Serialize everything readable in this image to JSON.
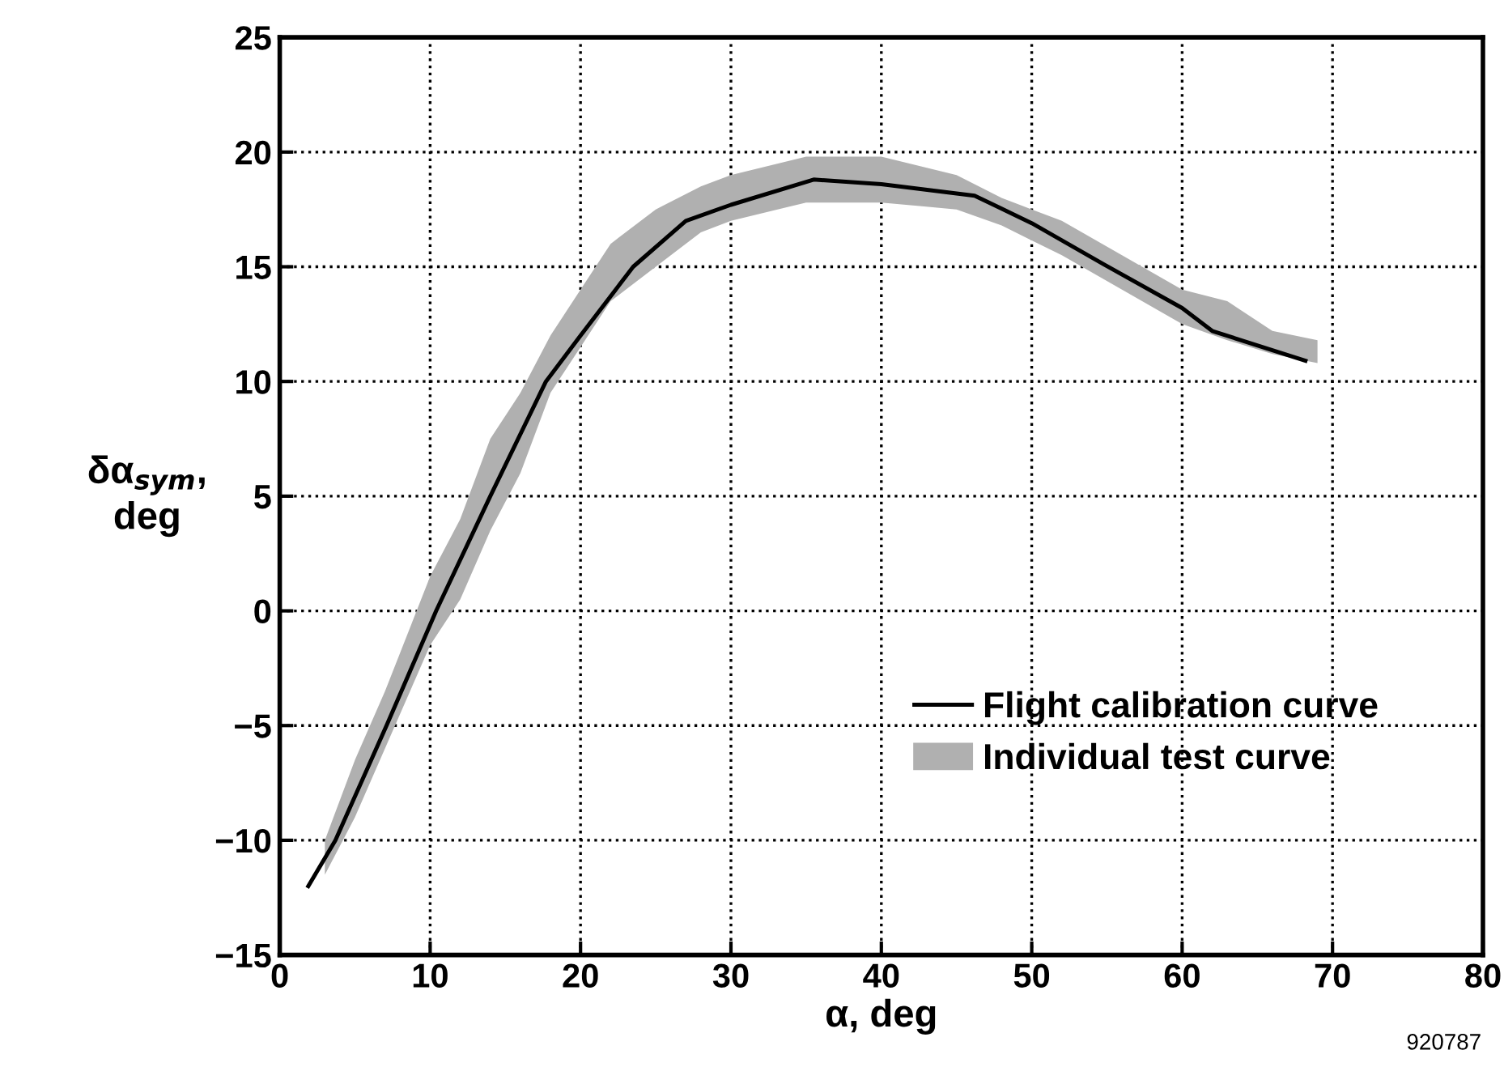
{
  "chart_data": {
    "type": "line",
    "xlabel": "α, deg",
    "ylabel": "δα$_{sym}$,\ndeg",
    "xlim": [
      0,
      80
    ],
    "ylim": [
      -15,
      25
    ],
    "xticks": [
      0,
      10,
      20,
      30,
      40,
      50,
      60,
      70,
      80
    ],
    "yticks": [
      -15,
      -10,
      -5,
      0,
      5,
      10,
      15,
      20,
      25
    ],
    "grid": true,
    "legend": "bottom right",
    "line_style": "solid",
    "marker": "none",
    "annotations": [
      "920787"
    ],
    "series": [
      {
        "name": "Flight calibration curve",
        "type": "line",
        "color": "#000000",
        "x": [
          1.9,
          3.7,
          7.1,
          10.4,
          14.0,
          17.7,
          20.0,
          23.5,
          27.0,
          30.0,
          35.5,
          40.0,
          46.2,
          50.0,
          54.8,
          60.0,
          62.0,
          68.2
        ],
        "values": [
          -12.0,
          -10.0,
          -5.0,
          0.0,
          5.0,
          10.0,
          12.0,
          15.0,
          17.0,
          17.7,
          18.8,
          18.6,
          18.1,
          16.9,
          15.1,
          13.2,
          12.2,
          10.9
        ]
      },
      {
        "name": "Individual test curve",
        "color": "#b0b0b0",
        "x": [
          3,
          5,
          7,
          10,
          12,
          14,
          16,
          18,
          20,
          22,
          25,
          28,
          30,
          35,
          40,
          45,
          48,
          52,
          56,
          60,
          63,
          66,
          69
        ],
        "lower": [
          -11.5,
          -9.0,
          -6.0,
          -1.5,
          0.5,
          3.5,
          6.0,
          9.5,
          11.5,
          13.5,
          15.0,
          16.5,
          17.0,
          17.8,
          17.8,
          17.5,
          16.8,
          15.5,
          14.0,
          12.5,
          11.8,
          11.2,
          10.8
        ],
        "values": [
          null,
          null,
          null,
          null,
          null,
          null,
          null,
          null,
          null,
          null,
          null,
          null,
          null,
          null,
          null,
          null,
          null,
          null,
          null,
          null,
          null,
          null,
          null
        ],
        "upper": [
          -10.0,
          -6.5,
          -3.5,
          1.5,
          4.0,
          7.5,
          9.5,
          12.0,
          14.0,
          16.0,
          17.5,
          18.5,
          19.0,
          19.8,
          19.8,
          19.0,
          18.0,
          17.0,
          15.5,
          14.0,
          13.5,
          12.2,
          11.8
        ]
      }
    ]
  }
}
